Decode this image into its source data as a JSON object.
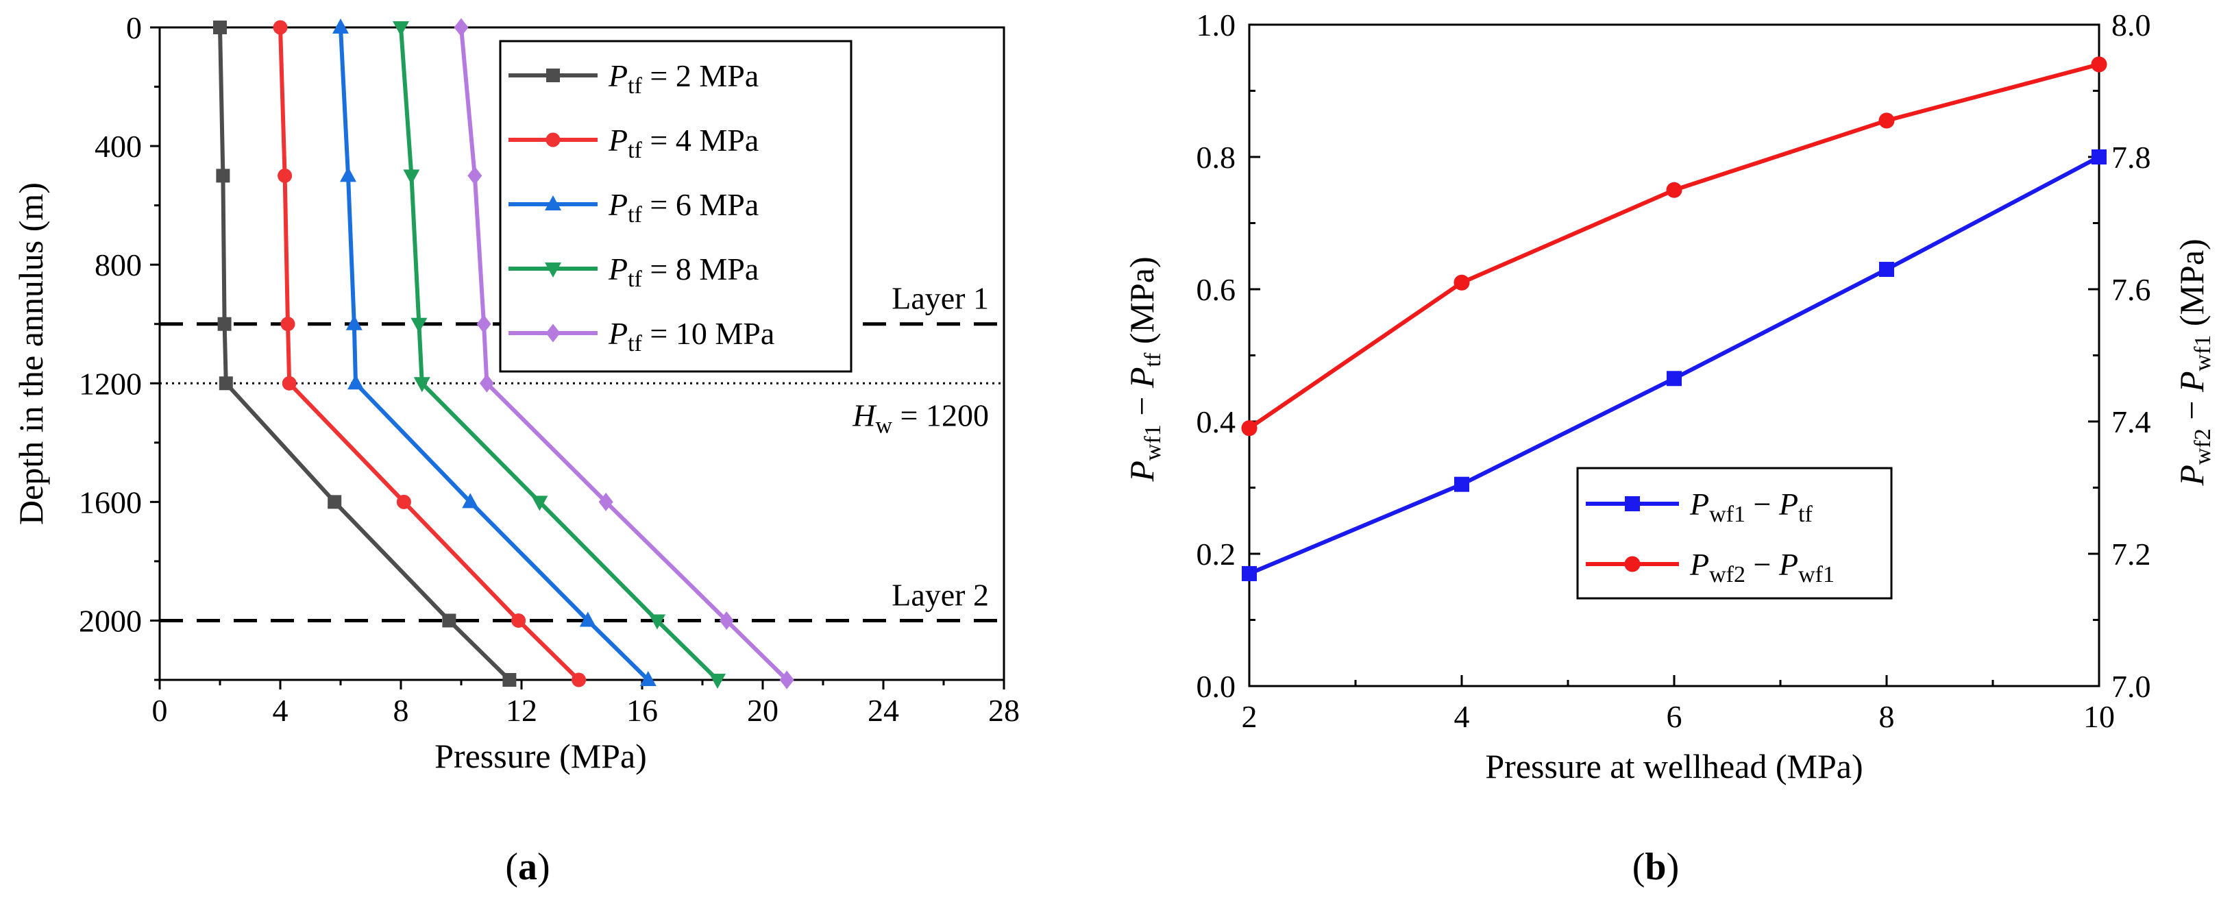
{
  "chart_data": [
    {
      "type": "line",
      "panel_label": "a",
      "xlabel": "Pressure (MPa)",
      "ylabel": "Depth in the annulus (m)",
      "xlim": [
        0,
        28
      ],
      "ylim": [
        0,
        2200
      ],
      "y_inverted": true,
      "x_ticks": [
        0,
        4,
        8,
        12,
        16,
        20,
        24,
        28
      ],
      "y_ticks": [
        0,
        400,
        800,
        1200,
        1600,
        2000
      ],
      "legend_position": "top-right",
      "series": [
        {
          "name": "P_tf = 2 MPa",
          "label_main": "P",
          "label_sub": "tf",
          "label_rest": " = 2 MPa",
          "color": "#4d4d4d",
          "marker": "square",
          "points": [
            [
              2.0,
              0
            ],
            [
              2.1,
              500
            ],
            [
              2.15,
              1000
            ],
            [
              2.2,
              1200
            ],
            [
              5.8,
              1600
            ],
            [
              9.6,
              2000
            ],
            [
              11.6,
              2200
            ]
          ]
        },
        {
          "name": "P_tf = 4 MPa",
          "label_main": "P",
          "label_sub": "tf",
          "label_rest": " = 4 MPa",
          "color": "#f03232",
          "marker": "circle",
          "points": [
            [
              4.0,
              0
            ],
            [
              4.15,
              500
            ],
            [
              4.25,
              1000
            ],
            [
              4.3,
              1200
            ],
            [
              8.1,
              1600
            ],
            [
              11.9,
              2000
            ],
            [
              13.9,
              2200
            ]
          ]
        },
        {
          "name": "P_tf = 6 MPa",
          "label_main": "P",
          "label_sub": "tf",
          "label_rest": " = 6 MPa",
          "color": "#1a6fdf",
          "marker": "triangle-up",
          "points": [
            [
              6.0,
              0
            ],
            [
              6.25,
              500
            ],
            [
              6.45,
              1000
            ],
            [
              6.5,
              1200
            ],
            [
              10.3,
              1600
            ],
            [
              14.2,
              2000
            ],
            [
              16.2,
              2200
            ]
          ]
        },
        {
          "name": "P_tf = 8 MPa",
          "label_main": "P",
          "label_sub": "tf",
          "label_rest": " = 8 MPa",
          "color": "#1f9e5a",
          "marker": "triangle-down",
          "points": [
            [
              8.0,
              0
            ],
            [
              8.35,
              500
            ],
            [
              8.6,
              1000
            ],
            [
              8.7,
              1200
            ],
            [
              12.6,
              1600
            ],
            [
              16.5,
              2000
            ],
            [
              18.5,
              2200
            ]
          ]
        },
        {
          "name": "P_tf = 10 MPa",
          "label_main": "P",
          "label_sub": "tf",
          "label_rest": " = 10 MPa",
          "color": "#b57ae0",
          "marker": "diamond",
          "points": [
            [
              10.0,
              0
            ],
            [
              10.45,
              500
            ],
            [
              10.75,
              1000
            ],
            [
              10.85,
              1200
            ],
            [
              14.8,
              1600
            ],
            [
              18.8,
              2000
            ],
            [
              20.8,
              2200
            ]
          ]
        }
      ],
      "reference_lines": [
        {
          "depth": 1000,
          "style": "dashed",
          "label": "Layer 1"
        },
        {
          "depth": 1200,
          "style": "dotted",
          "label_main": "H",
          "label_sub": "w",
          "label_rest": " = 1200"
        },
        {
          "depth": 2000,
          "style": "dashed",
          "label": "Layer 2"
        }
      ]
    },
    {
      "type": "line",
      "panel_label": "b",
      "xlabel": "Pressure at wellhead (MPa)",
      "xlim": [
        2,
        10
      ],
      "ylim": [
        0.0,
        1.0
      ],
      "y2lim": [
        7.0,
        8.0
      ],
      "x_ticks": [
        2,
        4,
        6,
        8,
        10
      ],
      "y_ticks": [
        "0.0",
        "0.2",
        "0.4",
        "0.6",
        "0.8",
        "1.0"
      ],
      "y2_ticks": [
        "7.0",
        "7.2",
        "7.4",
        "7.6",
        "7.8",
        "8.0"
      ],
      "ylabel_left": {
        "p1": "P",
        "s1": "wf1",
        "mid": " − ",
        "p2": "P",
        "s2": "tf",
        "unit": " (MPa)"
      },
      "ylabel_right": {
        "p1": "P",
        "s1": "wf2",
        "mid": " − ",
        "p2": "P",
        "s2": "wf1",
        "unit": " (MPa)"
      },
      "legend_position": "center-right",
      "series": [
        {
          "name": "P_wf1 - P_tf",
          "p1": "P",
          "s1": "wf1",
          "mid": " − ",
          "p2": "P",
          "s2": "tf",
          "axis": "left",
          "color": "#1a1af0",
          "marker": "square",
          "x": [
            2,
            4,
            6,
            8,
            10
          ],
          "values": [
            0.17,
            0.305,
            0.465,
            0.63,
            0.8
          ]
        },
        {
          "name": "P_wf2 - P_wf1",
          "p1": "P",
          "s1": "wf2",
          "mid": " − ",
          "p2": "P",
          "s2": "wf1",
          "axis": "right",
          "color": "#f01a1a",
          "marker": "circle",
          "x": [
            2,
            4,
            6,
            8,
            10
          ],
          "values": [
            7.39,
            7.61,
            7.75,
            7.855,
            7.94
          ]
        }
      ]
    }
  ]
}
